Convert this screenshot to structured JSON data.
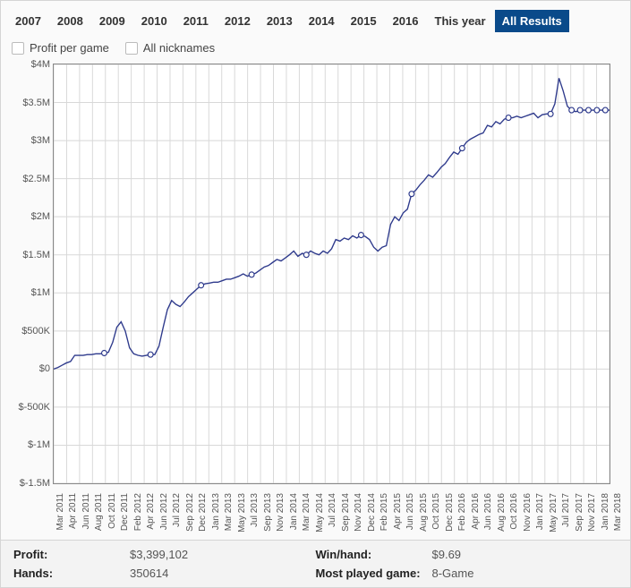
{
  "tabs": {
    "items": [
      "2007",
      "2008",
      "2009",
      "2010",
      "2011",
      "2012",
      "2013",
      "2014",
      "2015",
      "2016",
      "This year",
      "All Results"
    ],
    "active": "All Results"
  },
  "options": {
    "profit_per_game": {
      "label": "Profit per game",
      "checked": false
    },
    "all_nicknames": {
      "label": "All nicknames",
      "checked": false
    }
  },
  "chart": {
    "type": "line",
    "line_color": "#2e3a8c",
    "marker_color": "#2e3a8c",
    "marker_size": 3,
    "line_width": 1.4,
    "background_color": "#ffffff",
    "grid_color": "#d8d8d8",
    "border_color": "#888888",
    "ylim": [
      -1.5,
      4.0
    ],
    "ytick_step": 0.5,
    "yticks": [
      {
        "v": 4.0,
        "label": "$4M"
      },
      {
        "v": 3.5,
        "label": "$3.5M"
      },
      {
        "v": 3.0,
        "label": "$3M"
      },
      {
        "v": 2.5,
        "label": "$2.5M"
      },
      {
        "v": 2.0,
        "label": "$2M"
      },
      {
        "v": 1.5,
        "label": "$1.5M"
      },
      {
        "v": 1.0,
        "label": "$1M"
      },
      {
        "v": 0.5,
        "label": "$500K"
      },
      {
        "v": 0.0,
        "label": "$0"
      },
      {
        "v": -0.5,
        "label": "$-500K"
      },
      {
        "v": -1.0,
        "label": "$-1M"
      },
      {
        "v": -1.5,
        "label": "$-1.5M"
      }
    ],
    "xlabels": [
      "Mar 2011",
      "Apr 2011",
      "Jun 2011",
      "Aug 2011",
      "Oct 2011",
      "Dec 2011",
      "Feb 2012",
      "Apr 2012",
      "Jun 2012",
      "Jul 2012",
      "Sep 2012",
      "Dec 2012",
      "Jan 2013",
      "Mar 2013",
      "May 2013",
      "Jul 2013",
      "Sep 2013",
      "Nov 2013",
      "Jan 2014",
      "Mar 2014",
      "May 2014",
      "Jul 2014",
      "Sep 2014",
      "Nov 2014",
      "Dec 2014",
      "Feb 2015",
      "Apr 2015",
      "Jun 2015",
      "Aug 2015",
      "Oct 2015",
      "Dec 2015",
      "Feb 2016",
      "Apr 2016",
      "Jun 2016",
      "Aug 2016",
      "Oct 2016",
      "Nov 2016",
      "Jan 2017",
      "May 2017",
      "Jul 2017",
      "Sep 2017",
      "Nov 2017",
      "Jan 2018",
      "Mar 2018"
    ],
    "series": [
      0.0,
      0.02,
      0.05,
      0.08,
      0.1,
      0.18,
      0.18,
      0.18,
      0.19,
      0.19,
      0.2,
      0.2,
      0.21,
      0.22,
      0.35,
      0.55,
      0.62,
      0.5,
      0.28,
      0.2,
      0.18,
      0.17,
      0.18,
      0.19,
      0.19,
      0.3,
      0.55,
      0.78,
      0.9,
      0.85,
      0.82,
      0.88,
      0.95,
      1.0,
      1.05,
      1.1,
      1.12,
      1.13,
      1.14,
      1.14,
      1.16,
      1.18,
      1.18,
      1.2,
      1.22,
      1.25,
      1.22,
      1.24,
      1.26,
      1.3,
      1.34,
      1.36,
      1.4,
      1.44,
      1.42,
      1.46,
      1.5,
      1.55,
      1.48,
      1.52,
      1.5,
      1.55,
      1.52,
      1.5,
      1.55,
      1.52,
      1.58,
      1.7,
      1.68,
      1.72,
      1.7,
      1.75,
      1.72,
      1.76,
      1.74,
      1.7,
      1.6,
      1.55,
      1.6,
      1.62,
      1.9,
      2.0,
      1.95,
      2.05,
      2.1,
      2.3,
      2.35,
      2.42,
      2.48,
      2.55,
      2.52,
      2.58,
      2.65,
      2.7,
      2.78,
      2.85,
      2.82,
      2.9,
      2.98,
      3.02,
      3.05,
      3.08,
      3.1,
      3.2,
      3.18,
      3.25,
      3.22,
      3.28,
      3.3,
      3.3,
      3.32,
      3.3,
      3.32,
      3.34,
      3.36,
      3.3,
      3.34,
      3.35,
      3.35,
      3.48,
      3.82,
      3.65,
      3.45,
      3.4,
      3.38,
      3.4,
      3.4,
      3.4,
      3.4,
      3.4,
      3.4,
      3.4,
      3.4
    ],
    "markers_at": [
      12,
      23,
      35,
      47,
      60,
      73,
      85,
      97,
      108,
      118,
      123,
      125,
      127,
      129,
      131
    ]
  },
  "stats": {
    "profit": {
      "label": "Profit:",
      "value": "$3,399,102"
    },
    "hands": {
      "label": "Hands:",
      "value": "350614"
    },
    "winhand": {
      "label": "Win/hand:",
      "value": "$9.69"
    },
    "game": {
      "label": "Most played game:",
      "value": "8-Game"
    }
  }
}
